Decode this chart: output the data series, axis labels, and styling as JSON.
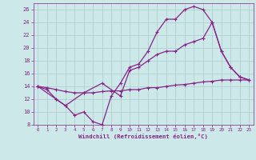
{
  "background_color": "#cce8e8",
  "line_color": "#882288",
  "grid_color": "#aacccc",
  "xlabel": "Windchill (Refroidissement éolien,°C)",
  "xlabel_color": "#882288",
  "tick_color": "#882288",
  "xlim": [
    -0.5,
    23.5
  ],
  "ylim": [
    8,
    27
  ],
  "yticks": [
    8,
    10,
    12,
    14,
    16,
    18,
    20,
    22,
    24,
    26
  ],
  "xticks": [
    0,
    1,
    2,
    3,
    4,
    5,
    6,
    7,
    8,
    9,
    10,
    11,
    12,
    13,
    14,
    15,
    16,
    17,
    18,
    19,
    20,
    21,
    22,
    23
  ],
  "curve1": {
    "x": [
      0,
      1,
      2,
      3,
      4,
      5,
      6,
      7,
      8,
      9,
      10,
      11,
      12,
      13,
      14,
      15,
      16,
      17,
      18,
      19,
      20,
      21,
      22,
      23
    ],
    "y": [
      14,
      13.5,
      12,
      11,
      9.5,
      10,
      8.5,
      8,
      12.5,
      14.5,
      17,
      17.5,
      19.5,
      22.5,
      24.5,
      24.5,
      26,
      26.5,
      26,
      24,
      19.5,
      17,
      15.5,
      15
    ]
  },
  "curve2": {
    "x": [
      0,
      1,
      2,
      3,
      4,
      5,
      6,
      7,
      8,
      9,
      10,
      11,
      12,
      13,
      14,
      15,
      16,
      17,
      18,
      19,
      20,
      21,
      22,
      23
    ],
    "y": [
      14,
      13.8,
      13.5,
      13.2,
      13.0,
      13.0,
      13.0,
      13.2,
      13.3,
      13.3,
      13.5,
      13.5,
      13.8,
      13.8,
      14.0,
      14.2,
      14.3,
      14.5,
      14.7,
      14.8,
      15.0,
      15.0,
      15.0,
      15.0
    ]
  },
  "curve3": {
    "x": [
      0,
      2,
      3,
      5,
      7,
      9,
      10,
      11,
      12,
      13,
      14,
      15,
      16,
      17,
      18,
      19,
      20,
      21,
      22,
      23
    ],
    "y": [
      14,
      12,
      11,
      13,
      14.5,
      12.5,
      16.5,
      17,
      18,
      19,
      19.5,
      19.5,
      20.5,
      21,
      21.5,
      24,
      19.5,
      17,
      15.5,
      15
    ]
  }
}
